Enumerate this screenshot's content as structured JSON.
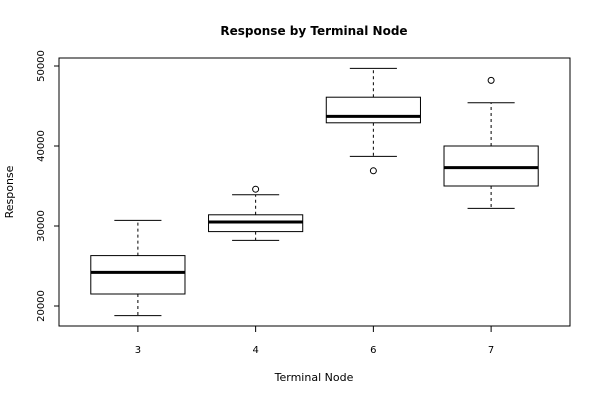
{
  "chart_data": {
    "type": "boxplot",
    "title": "Response by Terminal Node",
    "xlabel": "Terminal Node",
    "ylabel": "Response",
    "categories": [
      "3",
      "4",
      "6",
      "7"
    ],
    "ylim": [
      17500,
      51000
    ],
    "yticks": [
      20000,
      30000,
      40000,
      50000
    ],
    "grid": false,
    "boxes": [
      {
        "category": "3",
        "whisker_low": 18800,
        "q1": 21500,
        "median": 24200,
        "q3": 26300,
        "whisker_high": 30700,
        "outliers": []
      },
      {
        "category": "4",
        "whisker_low": 28200,
        "q1": 29300,
        "median": 30500,
        "q3": 31400,
        "whisker_high": 33900,
        "outliers": [
          34600
        ]
      },
      {
        "category": "6",
        "whisker_low": 38700,
        "q1": 42900,
        "median": 43700,
        "q3": 46100,
        "whisker_high": 49700,
        "outliers": [
          36900
        ]
      },
      {
        "category": "7",
        "whisker_low": 32200,
        "q1": 35000,
        "median": 37300,
        "q3": 40000,
        "whisker_high": 45400,
        "outliers": [
          48200
        ]
      }
    ],
    "colors": {
      "box_fill": "#ffffff",
      "stroke": "#000000",
      "background": "#ffffff"
    }
  }
}
